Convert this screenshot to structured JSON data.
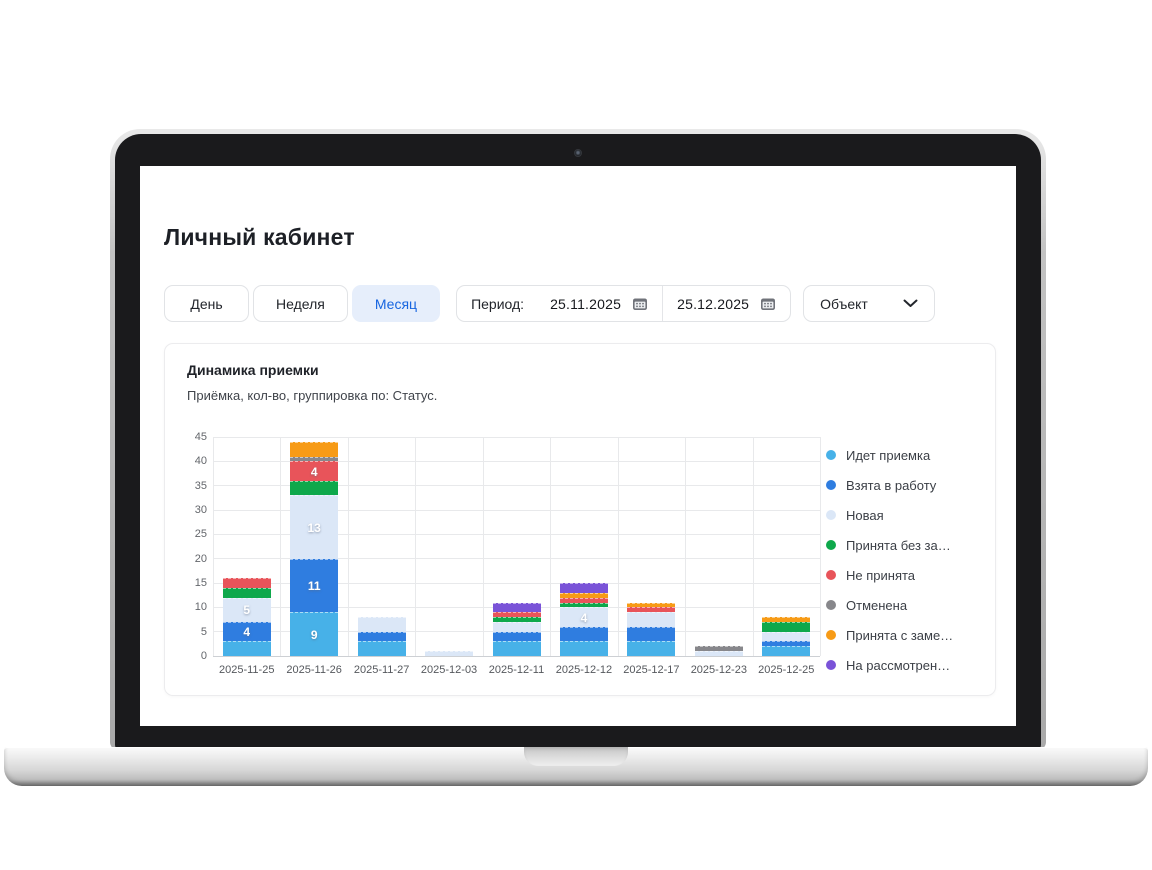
{
  "page": {
    "title": "Личный кабинет"
  },
  "toolbar": {
    "tabs": [
      {
        "label": "День",
        "active": false
      },
      {
        "label": "Неделя",
        "active": false
      },
      {
        "label": "Месяц",
        "active": true
      }
    ],
    "period": {
      "label": "Период:",
      "from": "25.11.2025",
      "to": "25.12.2025"
    },
    "object_dropdown": {
      "label": "Объект"
    }
  },
  "card": {
    "title": "Динамика приемки",
    "subtitle": "Приёмка, кол-во, группировка по: Статус."
  },
  "chart_data": {
    "type": "bar",
    "stacked": true,
    "title": "Динамика приемки",
    "categories": [
      "2025-11-25",
      "2025-11-26",
      "2025-11-27",
      "2025-12-03",
      "2025-12-11",
      "2025-12-12",
      "2025-12-17",
      "2025-12-23",
      "2025-12-25"
    ],
    "series": [
      {
        "name": "Идет приемка",
        "color": "#47b1e8",
        "values": [
          3,
          9,
          3,
          0,
          3,
          3,
          3,
          0,
          2
        ]
      },
      {
        "name": "Взята в работу",
        "color": "#2f7de0",
        "values": [
          4,
          11,
          2,
          0,
          2,
          3,
          3,
          0,
          1
        ]
      },
      {
        "name": "Новая",
        "color": "#dbe7f7",
        "values": [
          5,
          13,
          3,
          1,
          2,
          4,
          3,
          1,
          2
        ]
      },
      {
        "name": "Принята без за…",
        "color": "#0ea84b",
        "values": [
          2,
          3,
          0,
          0,
          1,
          1,
          0,
          0,
          2
        ]
      },
      {
        "name": "Не принята",
        "color": "#e8545a",
        "values": [
          2,
          4,
          0,
          0,
          1,
          1,
          1,
          0,
          0
        ]
      },
      {
        "name": "Отменена",
        "color": "#87878b",
        "values": [
          0,
          1,
          0,
          0,
          0,
          0,
          0,
          1,
          0
        ]
      },
      {
        "name": "Принята с заме…",
        "color": "#f79b16",
        "values": [
          0,
          3,
          0,
          0,
          0,
          1,
          1,
          0,
          1
        ]
      },
      {
        "name": "На рассмотрен…",
        "color": "#7a53d8",
        "values": [
          0,
          0,
          0,
          0,
          2,
          2,
          0,
          0,
          0
        ]
      }
    ],
    "ylim": [
      0,
      45
    ],
    "ytick_step": 5,
    "grid": true,
    "legend_position": "right",
    "bar_label_min_value": 4
  },
  "colors": {
    "accent": "#1765e0",
    "tab_active_bg": "#e6eefb"
  }
}
